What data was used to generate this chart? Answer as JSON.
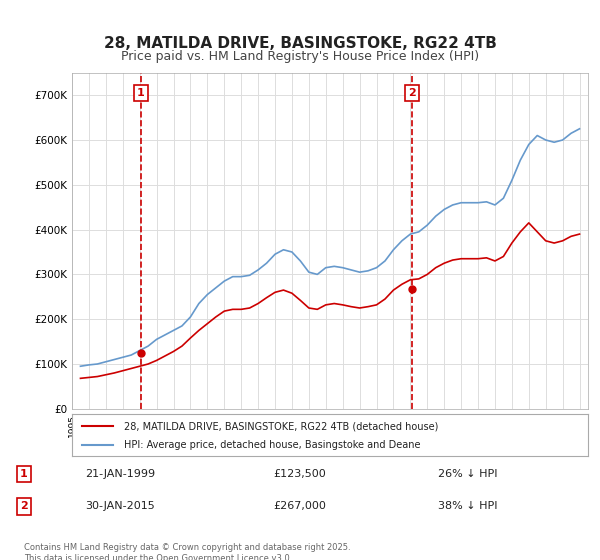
{
  "title": "28, MATILDA DRIVE, BASINGSTOKE, RG22 4TB",
  "subtitle": "Price paid vs. HM Land Registry's House Price Index (HPI)",
  "ylabel": "",
  "ylim": [
    0,
    750000
  ],
  "yticks": [
    0,
    100000,
    200000,
    300000,
    400000,
    500000,
    600000,
    700000
  ],
  "ytick_labels": [
    "£0",
    "£100K",
    "£200K",
    "£300K",
    "£400K",
    "£500K",
    "£600K",
    "£700K"
  ],
  "marker1": {
    "date": 1999.07,
    "price": 123500,
    "label": "1",
    "text": "21-JAN-1999",
    "price_text": "£123,500",
    "hpi_text": "26% ↓ HPI"
  },
  "marker2": {
    "date": 2015.08,
    "price": 267000,
    "label": "2",
    "text": "30-JAN-2015",
    "price_text": "£267,000",
    "hpi_text": "38% ↓ HPI"
  },
  "legend1_label": "28, MATILDA DRIVE, BASINGSTOKE, RG22 4TB (detached house)",
  "legend2_label": "HPI: Average price, detached house, Basingstoke and Deane",
  "footer": "Contains HM Land Registry data © Crown copyright and database right 2025.\nThis data is licensed under the Open Government Licence v3.0.",
  "red_color": "#cc0000",
  "blue_color": "#6699cc",
  "dashed_color": "#cc0000",
  "background_color": "#ffffff",
  "grid_color": "#dddddd",
  "title_fontsize": 11,
  "subtitle_fontsize": 9,
  "axis_fontsize": 8,
  "hpi_data_x": [
    1995.5,
    1996.0,
    1996.5,
    1997.0,
    1997.5,
    1998.0,
    1998.5,
    1999.0,
    1999.5,
    2000.0,
    2000.5,
    2001.0,
    2001.5,
    2002.0,
    2002.5,
    2003.0,
    2003.5,
    2004.0,
    2004.5,
    2005.0,
    2005.5,
    2006.0,
    2006.5,
    2007.0,
    2007.5,
    2008.0,
    2008.5,
    2009.0,
    2009.5,
    2010.0,
    2010.5,
    2011.0,
    2011.5,
    2012.0,
    2012.5,
    2013.0,
    2013.5,
    2014.0,
    2014.5,
    2015.0,
    2015.5,
    2016.0,
    2016.5,
    2017.0,
    2017.5,
    2018.0,
    2018.5,
    2019.0,
    2019.5,
    2020.0,
    2020.5,
    2021.0,
    2021.5,
    2022.0,
    2022.5,
    2023.0,
    2023.5,
    2024.0,
    2024.5,
    2025.0
  ],
  "hpi_data_y": [
    95000,
    98000,
    100000,
    105000,
    110000,
    115000,
    120000,
    130000,
    140000,
    155000,
    165000,
    175000,
    185000,
    205000,
    235000,
    255000,
    270000,
    285000,
    295000,
    295000,
    298000,
    310000,
    325000,
    345000,
    355000,
    350000,
    330000,
    305000,
    300000,
    315000,
    318000,
    315000,
    310000,
    305000,
    308000,
    315000,
    330000,
    355000,
    375000,
    390000,
    395000,
    410000,
    430000,
    445000,
    455000,
    460000,
    460000,
    460000,
    462000,
    455000,
    470000,
    510000,
    555000,
    590000,
    610000,
    600000,
    595000,
    600000,
    615000,
    625000
  ],
  "price_data_x": [
    1995.5,
    1996.0,
    1996.5,
    1997.0,
    1997.5,
    1998.0,
    1998.5,
    1999.0,
    1999.5,
    2000.0,
    2000.5,
    2001.0,
    2001.5,
    2002.0,
    2002.5,
    2003.0,
    2003.5,
    2004.0,
    2004.5,
    2005.0,
    2005.5,
    2006.0,
    2006.5,
    2007.0,
    2007.5,
    2008.0,
    2008.5,
    2009.0,
    2009.5,
    2010.0,
    2010.5,
    2011.0,
    2011.5,
    2012.0,
    2012.5,
    2013.0,
    2013.5,
    2014.0,
    2014.5,
    2015.0,
    2015.5,
    2016.0,
    2016.5,
    2017.0,
    2017.5,
    2018.0,
    2018.5,
    2019.0,
    2019.5,
    2020.0,
    2020.5,
    2021.0,
    2021.5,
    2022.0,
    2022.5,
    2023.0,
    2023.5,
    2024.0,
    2024.5,
    2025.0
  ],
  "price_data_y": [
    68000,
    70000,
    72000,
    76000,
    80000,
    85000,
    90000,
    95000,
    100000,
    108000,
    118000,
    128000,
    140000,
    158000,
    175000,
    190000,
    205000,
    218000,
    222000,
    222000,
    225000,
    235000,
    248000,
    260000,
    265000,
    258000,
    242000,
    225000,
    222000,
    232000,
    235000,
    232000,
    228000,
    225000,
    228000,
    232000,
    245000,
    265000,
    278000,
    288000,
    290000,
    300000,
    315000,
    325000,
    332000,
    335000,
    335000,
    335000,
    337000,
    330000,
    340000,
    370000,
    395000,
    415000,
    395000,
    375000,
    370000,
    375000,
    385000,
    390000
  ]
}
